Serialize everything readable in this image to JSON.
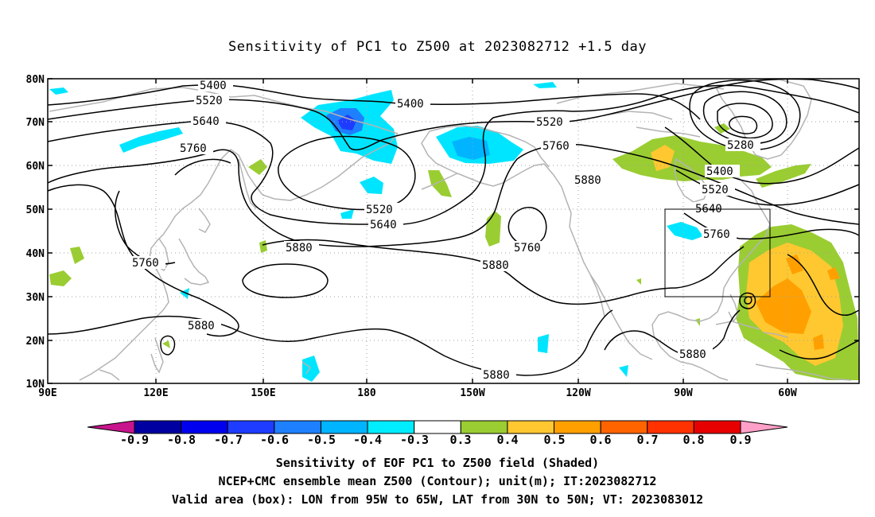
{
  "title": "Sensitivity of PC1 to Z500 at 2023082712 +1.5 day",
  "lat_labels": [
    "80N",
    "70N",
    "60N",
    "50N",
    "40N",
    "30N",
    "20N",
    "10N"
  ],
  "lon_labels": [
    "90E",
    "120E",
    "150E",
    "180",
    "150W",
    "120W",
    "90W",
    "60W"
  ],
  "contour_labels": {
    "c5400a": "5400",
    "c5520a": "5520",
    "c5640a": "5640",
    "c5760a": "5760",
    "c5400b": "5400",
    "c5520b": "5520",
    "c5760b": "5760",
    "c5880a": "5880",
    "c5280": "5280",
    "c5400c": "5400",
    "c5520c": "5520",
    "c5640c": "5640",
    "c5760c": "5760",
    "c5520d": "5520",
    "c5640d": "5640",
    "c5880b": "5880",
    "c5760d": "5760",
    "c5880c": "5880",
    "c5760e": "5760",
    "c5880d": "5880",
    "c5880e": "5880",
    "c5880f": "5880"
  },
  "colorbar": {
    "labels": [
      "-0.9",
      "-0.8",
      "-0.7",
      "-0.6",
      "-0.5",
      "-0.4",
      "-0.3",
      "0.3",
      "0.4",
      "0.5",
      "0.6",
      "0.7",
      "0.8",
      "0.9"
    ],
    "colors": [
      "#0000a0",
      "#0000ee",
      "#1e3cff",
      "#1e80ff",
      "#00b4ff",
      "#00ecff",
      "#ffffff",
      "#9acd32",
      "#ffc830",
      "#ffa000",
      "#ff6400",
      "#ff3200",
      "#e60000"
    ],
    "low_end_color": "#c8148c",
    "high_end_color": "#ffa0c8"
  },
  "captions": {
    "line1": "Sensitivity of EOF PC1 to Z500 field (Shaded)",
    "line2": "NCEP+CMC ensemble mean Z500 (Contour); unit(m); IT:2023082712",
    "line3": "Valid area (box): LON from 95W to 65W, LAT from 30N to 50N; VT: 2023083012"
  },
  "colors": {
    "coastline": "#b4b4b4",
    "contour": "#000000",
    "grid": "#a0a0a0",
    "positive_main": "#9acd32",
    "negative_main": "#00e5ff"
  }
}
